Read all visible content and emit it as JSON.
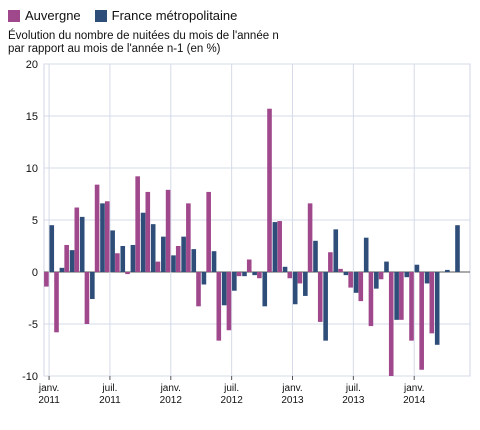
{
  "legend": [
    {
      "name": "Auvergne",
      "color": "#a0488c"
    },
    {
      "name": "France métropolitaine",
      "color": "#2e4d78"
    }
  ],
  "subtitle": {
    "line1": "Évolution du nombre de nuitées du mois de l'année n",
    "line2": "par rapport au mois de l'année n-1 (en %)"
  },
  "chart_data": {
    "type": "bar",
    "ylim": [
      -10,
      20
    ],
    "yticks": [
      -10,
      -5,
      0,
      5,
      10,
      15,
      20
    ],
    "grid": true,
    "legend_position": "top-left",
    "categories": [
      "2011-01",
      "2011-02",
      "2011-03",
      "2011-04",
      "2011-05",
      "2011-06",
      "2011-07",
      "2011-08",
      "2011-09",
      "2011-10",
      "2011-11",
      "2011-12",
      "2012-01",
      "2012-02",
      "2012-03",
      "2012-04",
      "2012-05",
      "2012-06",
      "2012-07",
      "2012-08",
      "2012-09",
      "2012-10",
      "2012-11",
      "2012-12",
      "2013-01",
      "2013-02",
      "2013-03",
      "2013-04",
      "2013-05",
      "2013-06",
      "2013-07",
      "2013-08",
      "2013-09",
      "2013-10",
      "2013-11",
      "2013-12",
      "2014-01",
      "2014-02",
      "2014-03",
      "2014-04",
      "2014-05",
      "2014-06"
    ],
    "x_tick_labels": [
      {
        "index": 0,
        "line1": "janv.",
        "line2": "2011"
      },
      {
        "index": 6,
        "line1": "juil.",
        "line2": "2011"
      },
      {
        "index": 12,
        "line1": "janv.",
        "line2": "2012"
      },
      {
        "index": 18,
        "line1": "juil.",
        "line2": "2012"
      },
      {
        "index": 24,
        "line1": "janv.",
        "line2": "2013"
      },
      {
        "index": 30,
        "line1": "juil.",
        "line2": "2013"
      },
      {
        "index": 36,
        "line1": "janv.",
        "line2": "2014"
      }
    ],
    "series": [
      {
        "name": "Auvergne",
        "color": "#a0488c",
        "values": [
          -1.4,
          -5.8,
          2.6,
          6.2,
          -5.0,
          8.4,
          6.8,
          1.8,
          -0.2,
          9.2,
          7.7,
          1.0,
          7.9,
          2.5,
          6.6,
          -3.3,
          7.7,
          -6.6,
          -5.6,
          -0.4,
          1.2,
          -0.6,
          15.7,
          4.9,
          -0.6,
          -1.1,
          6.6,
          -4.8,
          1.9,
          0.3,
          -1.5,
          -2.8,
          -5.2,
          -0.7,
          -10.0,
          -4.6,
          -6.6,
          -9.4,
          -5.9,
          0.0,
          0.0,
          0.0
        ]
      },
      {
        "name": "France métropolitaine",
        "color": "#2e4d78",
        "values": [
          4.5,
          0.4,
          2.1,
          5.3,
          -2.6,
          6.6,
          4.0,
          2.5,
          2.6,
          5.7,
          4.6,
          3.4,
          1.6,
          3.4,
          2.2,
          -1.2,
          2.0,
          -3.2,
          -1.8,
          -0.4,
          -0.3,
          -3.3,
          4.8,
          0.5,
          -3.1,
          -2.3,
          3.0,
          -6.6,
          4.1,
          -0.3,
          -2.0,
          3.3,
          -1.6,
          1.0,
          -4.6,
          -0.5,
          0.7,
          -1.1,
          -7.0,
          0.2,
          4.5,
          0.0
        ]
      }
    ]
  }
}
